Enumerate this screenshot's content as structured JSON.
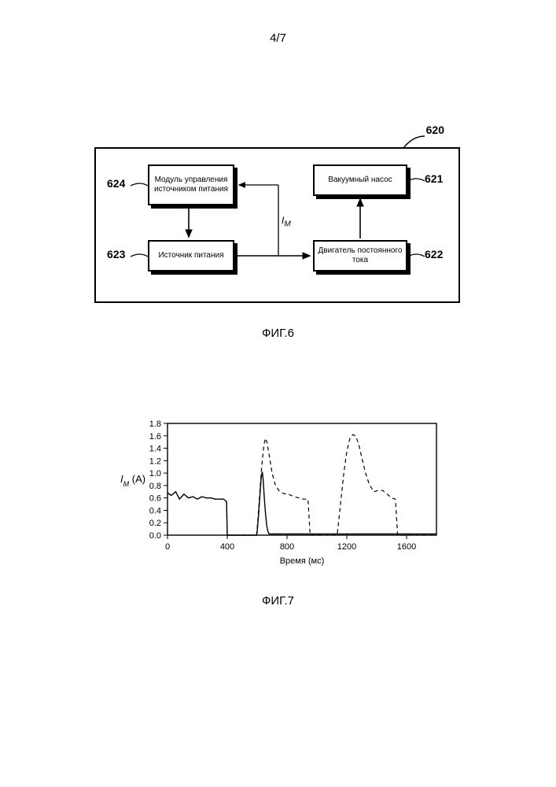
{
  "page_number": "4/7",
  "fig6": {
    "system_ref": "620",
    "caption": "ФИГ.6",
    "boxes": {
      "b624": {
        "ref": "624",
        "label": "Модуль управления источником питания"
      },
      "b623": {
        "ref": "623",
        "label": "Источник питания"
      },
      "b621": {
        "ref": "621",
        "label": "Вакуумный насос"
      },
      "b622": {
        "ref": "622",
        "label": "Двигатель постоянного тока"
      }
    },
    "signal_label": "I",
    "signal_sub": "M",
    "colors": {
      "stroke": "#000000",
      "fill": "#ffffff",
      "shadow": "#000000"
    }
  },
  "fig7": {
    "caption": "ФИГ.7",
    "ylabel_i": "I",
    "ylabel_sub": "M",
    "ylabel_unit": " (А)",
    "xlabel": "Время (мс)",
    "ylim": [
      0.0,
      1.8
    ],
    "ytick_step": 0.2,
    "yticks": [
      "0.0",
      "0.2",
      "0.4",
      "0.6",
      "0.8",
      "1.0",
      "1.2",
      "1.4",
      "1.6",
      "1.8"
    ],
    "xlim": [
      0,
      1800
    ],
    "xticks": [
      0,
      400,
      800,
      1200,
      1600
    ],
    "plot_bg": "#ffffff",
    "axis_color": "#000000",
    "tick_fontsize": 11,
    "label_fontsize": 11,
    "series_solid": {
      "color": "#000000",
      "width": 1.4,
      "dash": "none",
      "points": [
        [
          0,
          0.68
        ],
        [
          25,
          0.64
        ],
        [
          55,
          0.7
        ],
        [
          80,
          0.58
        ],
        [
          110,
          0.66
        ],
        [
          140,
          0.6
        ],
        [
          170,
          0.62
        ],
        [
          200,
          0.58
        ],
        [
          230,
          0.62
        ],
        [
          260,
          0.6
        ],
        [
          290,
          0.6
        ],
        [
          320,
          0.58
        ],
        [
          350,
          0.58
        ],
        [
          375,
          0.58
        ],
        [
          395,
          0.54
        ],
        [
          400,
          0.0
        ],
        [
          595,
          0.0
        ],
        [
          600,
          0.05
        ],
        [
          610,
          0.35
        ],
        [
          620,
          0.7
        ],
        [
          628,
          0.95
        ],
        [
          634,
          1.02
        ],
        [
          640,
          0.9
        ],
        [
          648,
          0.6
        ],
        [
          656,
          0.35
        ],
        [
          664,
          0.15
        ],
        [
          672,
          0.06
        ],
        [
          680,
          0.02
        ],
        [
          720,
          0.02
        ],
        [
          800,
          0.02
        ],
        [
          900,
          0.02
        ],
        [
          1000,
          0.02
        ],
        [
          1100,
          0.02
        ],
        [
          1200,
          0.02
        ],
        [
          1300,
          0.02
        ],
        [
          1400,
          0.02
        ],
        [
          1500,
          0.02
        ],
        [
          1600,
          0.02
        ],
        [
          1700,
          0.02
        ],
        [
          1800,
          0.02
        ]
      ]
    },
    "series_dashed": {
      "color": "#000000",
      "width": 1.2,
      "dash": "5,4",
      "points": [
        [
          0,
          0.68
        ],
        [
          25,
          0.64
        ],
        [
          55,
          0.7
        ],
        [
          80,
          0.58
        ],
        [
          110,
          0.66
        ],
        [
          140,
          0.6
        ],
        [
          170,
          0.62
        ],
        [
          200,
          0.58
        ],
        [
          230,
          0.62
        ],
        [
          260,
          0.6
        ],
        [
          290,
          0.6
        ],
        [
          320,
          0.58
        ],
        [
          350,
          0.58
        ],
        [
          375,
          0.58
        ],
        [
          395,
          0.54
        ],
        [
          400,
          0.0
        ],
        [
          595,
          0.0
        ],
        [
          600,
          0.1
        ],
        [
          615,
          0.6
        ],
        [
          630,
          1.1
        ],
        [
          645,
          1.45
        ],
        [
          655,
          1.56
        ],
        [
          665,
          1.5
        ],
        [
          680,
          1.3
        ],
        [
          700,
          1.0
        ],
        [
          720,
          0.82
        ],
        [
          745,
          0.72
        ],
        [
          775,
          0.67
        ],
        [
          810,
          0.66
        ],
        [
          845,
          0.62
        ],
        [
          880,
          0.6
        ],
        [
          910,
          0.58
        ],
        [
          940,
          0.58
        ],
        [
          955,
          0.0
        ],
        [
          1135,
          0.0
        ],
        [
          1140,
          0.1
        ],
        [
          1160,
          0.55
        ],
        [
          1180,
          1.0
        ],
        [
          1200,
          1.35
        ],
        [
          1220,
          1.55
        ],
        [
          1240,
          1.62
        ],
        [
          1258,
          1.6
        ],
        [
          1278,
          1.48
        ],
        [
          1300,
          1.25
        ],
        [
          1325,
          1.0
        ],
        [
          1350,
          0.82
        ],
        [
          1380,
          0.7
        ],
        [
          1410,
          0.72
        ],
        [
          1440,
          0.72
        ],
        [
          1470,
          0.66
        ],
        [
          1500,
          0.6
        ],
        [
          1525,
          0.58
        ],
        [
          1540,
          0.0
        ],
        [
          1800,
          0.0
        ]
      ]
    }
  }
}
